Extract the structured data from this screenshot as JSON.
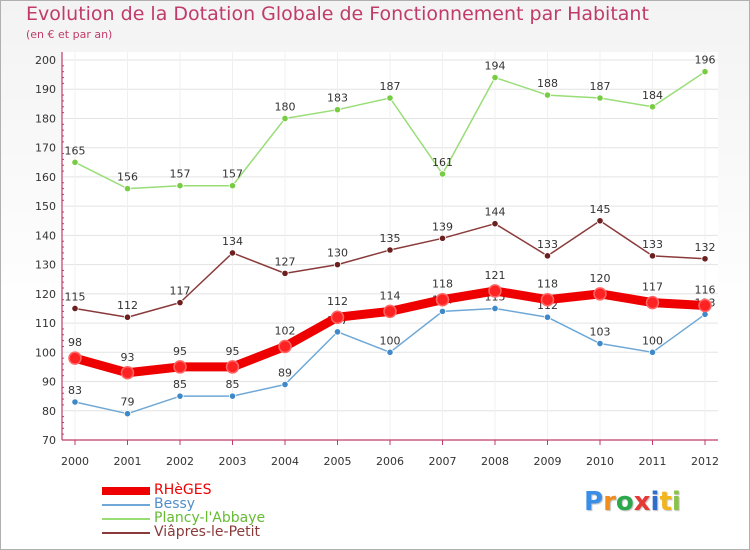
{
  "colors": {
    "title": "#c03b6a",
    "axis": "#c03b6a",
    "grid": "#e3e3e3",
    "label": "#333333"
  },
  "chart_data": {
    "type": "line",
    "title": "Evolution de la Dotation Globale de Fonctionnement par Habitant",
    "subtitle": "(en € et par an)",
    "x": [
      "2000",
      "2001",
      "2002",
      "2003",
      "2004",
      "2005",
      "2006",
      "2007",
      "2008",
      "2009",
      "2010",
      "2011",
      "2012"
    ],
    "ylim": [
      70,
      200
    ],
    "yticks": [
      "70",
      "80",
      "90",
      "100",
      "110",
      "120",
      "130",
      "140",
      "150",
      "160",
      "170",
      "180",
      "190",
      "200"
    ],
    "grid": "horizontal",
    "legend": "bottom-left",
    "series": [
      {
        "name": "RHèGES",
        "color": "#ee0000",
        "marker": "#ff2222",
        "width": 9,
        "values": [
          98,
          93,
          95,
          95,
          102,
          112,
          114,
          118,
          121,
          118,
          120,
          117,
          116
        ],
        "labels": [
          "98",
          "93",
          "95",
          "95",
          "102",
          "112",
          "114",
          "118",
          "121",
          "118",
          "120",
          "117",
          "116"
        ]
      },
      {
        "name": "Bessy",
        "color": "#6fa8d6",
        "marker": "#3f89c9",
        "width": 1.5,
        "values": [
          83,
          79,
          85,
          85,
          89,
          107,
          100,
          114,
          115,
          112,
          103,
          100,
          113
        ],
        "labels": [
          "83",
          "79",
          "85",
          "85",
          "89",
          "107",
          "100",
          "114",
          "115",
          "112",
          "103",
          "100",
          "113"
        ]
      },
      {
        "name": "Plancy-l'Abbaye",
        "color": "#99dd77",
        "marker": "#77cc44",
        "width": 1.5,
        "values": [
          165,
          156,
          157,
          157,
          180,
          183,
          187,
          161,
          194,
          188,
          187,
          184,
          196
        ],
        "labels": [
          "165",
          "156",
          "157",
          "157",
          "180",
          "183",
          "187",
          "161",
          "194",
          "188",
          "187",
          "184",
          "196"
        ]
      },
      {
        "name": "Viâpres-le-Petit",
        "color": "#8a3a3a",
        "marker": "#6b1f1f",
        "width": 1.5,
        "values": [
          115,
          112,
          117,
          134,
          127,
          130,
          135,
          139,
          144,
          133,
          145,
          133,
          132
        ],
        "labels": [
          "115",
          "112",
          "117",
          "134",
          "127",
          "130",
          "135",
          "139",
          "144",
          "133",
          "145",
          "133",
          "132"
        ]
      }
    ]
  },
  "logo": {
    "letters": [
      "P",
      "r",
      "o",
      "x",
      "i",
      "t",
      "i"
    ],
    "colors": [
      "#3a8ee6",
      "#f28c1c",
      "#2aa84a",
      "#e53935",
      "#2f6ec9",
      "#f2b51c",
      "#8bc34a"
    ]
  }
}
